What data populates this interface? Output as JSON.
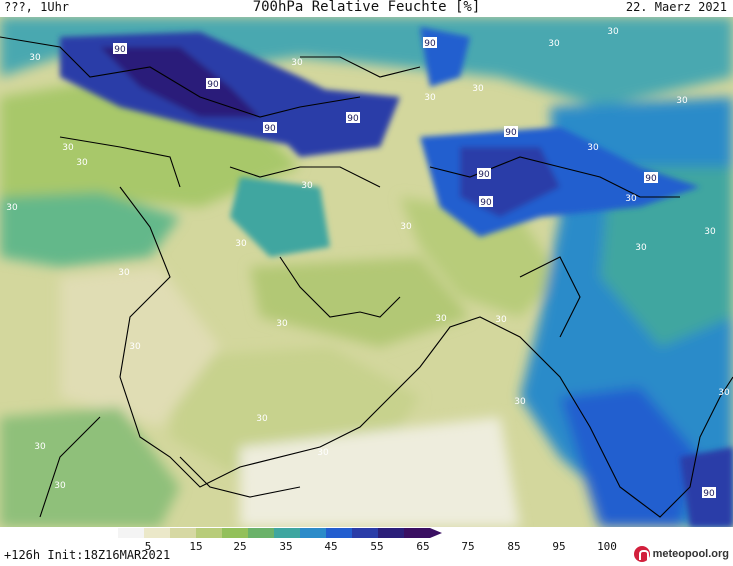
{
  "header": {
    "left": "???, 1Uhr",
    "title": "700hPa Relative Feuchte [%]",
    "date": "22. Maerz 2021"
  },
  "map": {
    "contour_labels": [
      "90",
      "90",
      "90",
      "90",
      "90",
      "90",
      "90",
      "90",
      "90",
      "90",
      "30",
      "30",
      "30",
      "30",
      "30",
      "30",
      "30",
      "30",
      "30",
      "30",
      "30",
      "30",
      "30",
      "30",
      "30",
      "30",
      "30",
      "30",
      "30",
      "30",
      "30",
      "30",
      "30",
      "30",
      "30",
      "30",
      "30",
      "30"
    ]
  },
  "legend": {
    "ticks": [
      "5",
      "15",
      "25",
      "35",
      "45",
      "55",
      "65",
      "75",
      "85",
      "95",
      "100"
    ],
    "colors": [
      "#f4f4f4",
      "#ebe8c9",
      "#d6d8a3",
      "#b8cc7a",
      "#93c05b",
      "#6bb26a",
      "#3fa6a0",
      "#2c8bc9",
      "#235ecf",
      "#2a3ca8",
      "#2b1f7a",
      "#3a0f62"
    ]
  },
  "footer": {
    "left": "+126h Init:18Z16MAR2021",
    "brand": "meteopool.org"
  }
}
